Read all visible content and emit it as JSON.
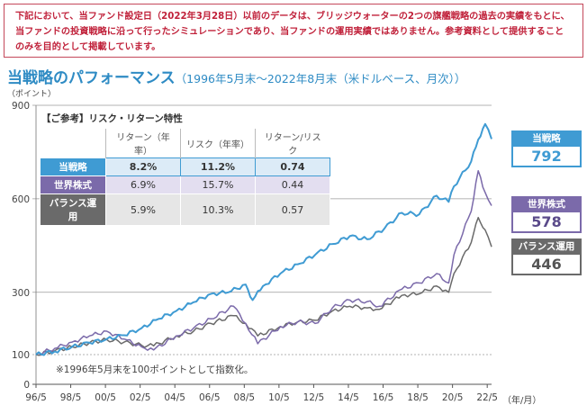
{
  "notice": "下記において、当ファンド設定日（2022年3月28日）以前のデータは、ブリッジウォーターの2つの旗艦戦略の過去の実績をもとに、当ファンドの投資戦略に沿って行ったシミュレーションであり、当ファンドの運用実績ではありません。参考資料として提供することのみを目的として掲載しています。",
  "title": {
    "main": "当戦略のパフォーマンス",
    "sub": "（1996年5月末～2022年8月末（米ドルベース、月次））"
  },
  "y_unit": "（ポイント）",
  "x_unit": "（年/月）",
  "note": "※1996年5月末を100ポイントとして指数化。",
  "risk_table": {
    "caption": "【ご参考】リスク・リターン特性",
    "headers": [
      "リターン（年率）",
      "リスク（年率）",
      "リターン/リスク"
    ],
    "rows": [
      {
        "label": "当戦略",
        "values": [
          "8.2%",
          "11.2%",
          "0.74"
        ]
      },
      {
        "label": "世界株式",
        "values": [
          "6.9%",
          "15.7%",
          "0.44"
        ]
      },
      {
        "label": "バランス運用",
        "values": [
          "5.9%",
          "10.3%",
          "0.57"
        ]
      }
    ]
  },
  "badges": [
    {
      "label": "当戦略",
      "value": "792"
    },
    {
      "label": "世界株式",
      "value": "578"
    },
    {
      "label": "バランス運用",
      "value": "446"
    }
  ],
  "colors": {
    "strategy": "#3f9bd3",
    "world_equity": "#7b6aaa",
    "balanced": "#6a6a6a"
  },
  "chart_data": {
    "type": "line",
    "x_tick_labels": [
      "96/5",
      "98/5",
      "00/5",
      "02/5",
      "04/5",
      "06/5",
      "08/5",
      "10/5",
      "12/5",
      "14/5",
      "16/5",
      "18/5",
      "20/5",
      "22/5"
    ],
    "y_ticks": [
      0,
      100,
      300,
      600,
      900
    ],
    "ylim": [
      0,
      900
    ],
    "xlim": [
      1996.42,
      2022.67
    ],
    "series": [
      {
        "name": "当戦略",
        "color": "#3f9bd3",
        "x": [
          1996.42,
          1997.5,
          1998.5,
          1999.5,
          2000.5,
          2001.5,
          2002.5,
          2003.5,
          2004.5,
          2005.5,
          2006.5,
          2007.5,
          2008.5,
          2008.9,
          2009.5,
          2010.5,
          2011.5,
          2012.5,
          2013.5,
          2014.5,
          2015.5,
          2016.5,
          2017.5,
          2018.5,
          2019.5,
          2020.2,
          2020.5,
          2021.5,
          2021.9,
          2022.3,
          2022.67
        ],
        "values": [
          100,
          110,
          125,
          138,
          150,
          162,
          185,
          215,
          240,
          268,
          295,
          300,
          325,
          275,
          320,
          360,
          390,
          420,
          455,
          480,
          470,
          505,
          555,
          550,
          610,
          590,
          640,
          720,
          790,
          840,
          792
        ]
      },
      {
        "name": "世界株式",
        "color": "#7b6aaa",
        "x": [
          1996.42,
          1997.5,
          1998.5,
          1999.5,
          2000.5,
          2001.5,
          2002.5,
          2003.2,
          2004.5,
          2005.5,
          2006.5,
          2007.8,
          2008.5,
          2009.2,
          2010.5,
          2011.5,
          2012.5,
          2013.5,
          2014.5,
          2015.5,
          2016.2,
          2017.5,
          2018.5,
          2019.5,
          2020.2,
          2020.5,
          2021.5,
          2021.9,
          2022.3,
          2022.67
        ],
        "values": [
          100,
          120,
          140,
          160,
          175,
          150,
          125,
          115,
          160,
          185,
          215,
          255,
          200,
          135,
          190,
          205,
          200,
          250,
          275,
          270,
          255,
          310,
          330,
          360,
          330,
          420,
          560,
          690,
          620,
          578
        ]
      },
      {
        "name": "バランス運用",
        "color": "#6a6a6a",
        "x": [
          1996.42,
          1997.5,
          1998.5,
          1999.5,
          2000.5,
          2001.5,
          2002.5,
          2003.2,
          2004.5,
          2005.5,
          2006.5,
          2007.8,
          2008.5,
          2009.2,
          2010.5,
          2011.5,
          2012.5,
          2013.5,
          2014.5,
          2015.5,
          2016.2,
          2017.5,
          2018.5,
          2019.5,
          2020.2,
          2020.5,
          2021.5,
          2021.9,
          2022.3,
          2022.67
        ],
        "values": [
          100,
          112,
          125,
          138,
          148,
          140,
          130,
          128,
          160,
          175,
          200,
          225,
          200,
          160,
          190,
          205,
          210,
          240,
          255,
          250,
          245,
          290,
          295,
          320,
          300,
          360,
          460,
          540,
          500,
          446
        ]
      }
    ]
  }
}
